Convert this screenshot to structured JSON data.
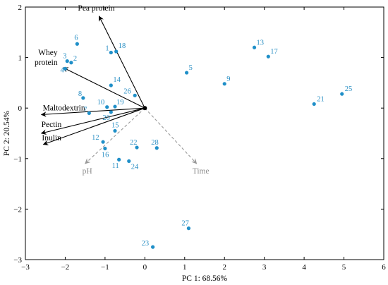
{
  "chart_data": {
    "type": "scatter",
    "xlabel": "PC 1: 68.56%",
    "ylabel": "PC 2: 20.54%",
    "xlim": [
      -3,
      6
    ],
    "ylim": [
      -3,
      2
    ],
    "x_ticks": [
      "−3",
      "−2",
      "−1",
      "0",
      "1",
      "2",
      "3",
      "4",
      "5",
      "6"
    ],
    "y_ticks": [
      "2",
      "1",
      "0",
      "−1",
      "−2",
      "−3"
    ],
    "x_tick_values": [
      -3,
      -2,
      -1,
      0,
      1,
      2,
      3,
      4,
      5,
      6
    ],
    "y_tick_values": [
      2,
      1,
      0,
      -1,
      -2,
      -3
    ],
    "point_color": "#1f8fc8",
    "points": [
      {
        "label": "1",
        "x": -0.85,
        "y": 1.1
      },
      {
        "label": "18",
        "x": -0.72,
        "y": 1.12
      },
      {
        "label": "6",
        "x": -1.7,
        "y": 1.27
      },
      {
        "label": "3",
        "x": -1.95,
        "y": 0.93
      },
      {
        "label": "2",
        "x": -1.85,
        "y": 0.9
      },
      {
        "label": "4",
        "x": -2.0,
        "y": 0.78
      },
      {
        "label": "14",
        "x": -0.85,
        "y": 0.45
      },
      {
        "label": "26",
        "x": -0.25,
        "y": 0.25
      },
      {
        "label": "8",
        "x": -1.55,
        "y": 0.2
      },
      {
        "label": "10",
        "x": -0.95,
        "y": 0.02
      },
      {
        "label": "19",
        "x": -0.75,
        "y": 0.03
      },
      {
        "label": "7",
        "x": -1.4,
        "y": -0.1
      },
      {
        "label": "20",
        "x": -0.85,
        "y": -0.08
      },
      {
        "label": "15",
        "x": -0.75,
        "y": -0.45
      },
      {
        "label": "12",
        "x": -1.05,
        "y": -0.67
      },
      {
        "label": "16",
        "x": -1.0,
        "y": -0.8
      },
      {
        "label": "22",
        "x": -0.2,
        "y": -0.78
      },
      {
        "label": "28",
        "x": 0.3,
        "y": -0.79
      },
      {
        "label": "11",
        "x": -0.65,
        "y": -1.02
      },
      {
        "label": "24",
        "x": -0.4,
        "y": -1.05
      },
      {
        "label": "5",
        "x": 1.05,
        "y": 0.7
      },
      {
        "label": "9",
        "x": 2.0,
        "y": 0.48
      },
      {
        "label": "13",
        "x": 2.75,
        "y": 1.2
      },
      {
        "label": "17",
        "x": 3.1,
        "y": 1.02
      },
      {
        "label": "21",
        "x": 4.25,
        "y": 0.08
      },
      {
        "label": "25",
        "x": 4.95,
        "y": 0.28
      },
      {
        "label": "27",
        "x": 1.1,
        "y": -2.38
      },
      {
        "label": "23",
        "x": 0.2,
        "y": -2.75
      }
    ],
    "loadings": [
      {
        "name": "Pea protein",
        "x": -1.15,
        "y": 1.82,
        "style": "active"
      },
      {
        "name": "Whey\nprotein",
        "x": -2.05,
        "y": 0.8,
        "style": "active"
      },
      {
        "name": "Maltodextrin",
        "x": -2.6,
        "y": -0.13,
        "style": "active"
      },
      {
        "name": "Pectin",
        "x": -2.6,
        "y": -0.5,
        "style": "active"
      },
      {
        "name": "Inulin",
        "x": -2.55,
        "y": -0.72,
        "style": "active"
      },
      {
        "name": "pH",
        "x": -1.5,
        "y": -1.1,
        "style": "supplementary"
      },
      {
        "name": "Time",
        "x": 1.3,
        "y": -1.1,
        "style": "supplementary"
      }
    ]
  }
}
